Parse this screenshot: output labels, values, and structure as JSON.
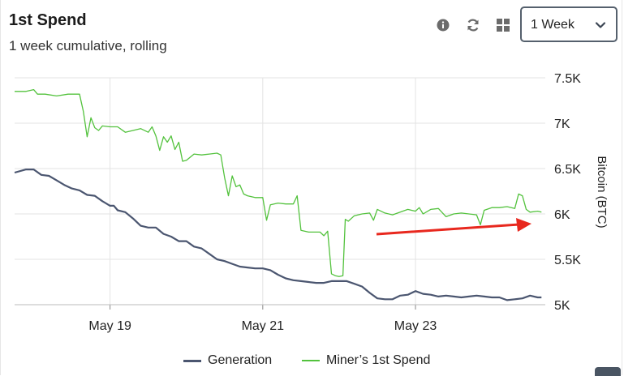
{
  "header": {
    "title": "1st Spend",
    "subtitle": "1 week cumulative, rolling"
  },
  "toolbar": {
    "info_icon": "info-icon",
    "refresh_icon": "refresh-icon",
    "grid_icon": "grid-icon",
    "range_select": {
      "value": "1 Week",
      "icon": "chevron-down-icon"
    }
  },
  "colors": {
    "generation": "#4b5670",
    "spend": "#53c23d",
    "arrow": "#e8281e",
    "grid": "#e3e3e3"
  },
  "chart_data": {
    "type": "line",
    "xlabel": "",
    "ylabel": "Bitcoin (BTC)",
    "x_ticks": [
      {
        "label": "May 19",
        "x": 19.0
      },
      {
        "label": "May 21",
        "x": 21.0
      },
      {
        "label": "May 23",
        "x": 23.0
      }
    ],
    "y_ticks": [
      {
        "label": "7.5K",
        "value": 7500
      },
      {
        "label": "7K",
        "value": 7000
      },
      {
        "label": "6.5K",
        "value": 6500
      },
      {
        "label": "6K",
        "value": 6000
      },
      {
        "label": "5.5K",
        "value": 5500
      },
      {
        "label": "5K",
        "value": 5000
      }
    ],
    "xlim": [
      17.75,
      24.7
    ],
    "ylim": [
      5000,
      7500
    ],
    "grid": true,
    "legend_position": "bottom",
    "series": [
      {
        "name": "Generation",
        "points": [
          [
            17.75,
            6455
          ],
          [
            17.9,
            6490
          ],
          [
            18.0,
            6490
          ],
          [
            18.1,
            6430
          ],
          [
            18.2,
            6420
          ],
          [
            18.3,
            6370
          ],
          [
            18.4,
            6320
          ],
          [
            18.5,
            6280
          ],
          [
            18.6,
            6260
          ],
          [
            18.7,
            6210
          ],
          [
            18.8,
            6200
          ],
          [
            18.9,
            6140
          ],
          [
            19.0,
            6090
          ],
          [
            19.05,
            6090
          ],
          [
            19.1,
            6040
          ],
          [
            19.2,
            6020
          ],
          [
            19.3,
            5950
          ],
          [
            19.4,
            5870
          ],
          [
            19.5,
            5850
          ],
          [
            19.6,
            5850
          ],
          [
            19.7,
            5780
          ],
          [
            19.8,
            5750
          ],
          [
            19.9,
            5700
          ],
          [
            20.0,
            5700
          ],
          [
            20.1,
            5640
          ],
          [
            20.2,
            5620
          ],
          [
            20.3,
            5560
          ],
          [
            20.4,
            5500
          ],
          [
            20.5,
            5480
          ],
          [
            20.6,
            5450
          ],
          [
            20.7,
            5420
          ],
          [
            20.8,
            5410
          ],
          [
            20.9,
            5400
          ],
          [
            21.0,
            5400
          ],
          [
            21.1,
            5380
          ],
          [
            21.2,
            5330
          ],
          [
            21.3,
            5290
          ],
          [
            21.4,
            5270
          ],
          [
            21.5,
            5260
          ],
          [
            21.6,
            5250
          ],
          [
            21.7,
            5240
          ],
          [
            21.8,
            5240
          ],
          [
            21.9,
            5260
          ],
          [
            22.0,
            5260
          ],
          [
            22.1,
            5260
          ],
          [
            22.2,
            5230
          ],
          [
            22.3,
            5200
          ],
          [
            22.4,
            5130
          ],
          [
            22.5,
            5070
          ],
          [
            22.6,
            5060
          ],
          [
            22.7,
            5060
          ],
          [
            22.8,
            5100
          ],
          [
            22.9,
            5110
          ],
          [
            23.0,
            5150
          ],
          [
            23.1,
            5120
          ],
          [
            23.2,
            5110
          ],
          [
            23.3,
            5090
          ],
          [
            23.4,
            5100
          ],
          [
            23.5,
            5090
          ],
          [
            23.6,
            5080
          ],
          [
            23.7,
            5090
          ],
          [
            23.8,
            5100
          ],
          [
            23.9,
            5090
          ],
          [
            24.0,
            5080
          ],
          [
            24.1,
            5080
          ],
          [
            24.2,
            5050
          ],
          [
            24.3,
            5060
          ],
          [
            24.4,
            5070
          ],
          [
            24.5,
            5100
          ],
          [
            24.6,
            5080
          ],
          [
            24.65,
            5080
          ]
        ]
      },
      {
        "name": "Miner’s 1st Spend",
        "points": [
          [
            17.75,
            7350
          ],
          [
            17.9,
            7350
          ],
          [
            18.0,
            7370
          ],
          [
            18.05,
            7320
          ],
          [
            18.15,
            7320
          ],
          [
            18.3,
            7300
          ],
          [
            18.45,
            7320
          ],
          [
            18.6,
            7320
          ],
          [
            18.65,
            7130
          ],
          [
            18.7,
            6850
          ],
          [
            18.75,
            7060
          ],
          [
            18.8,
            6950
          ],
          [
            18.85,
            6920
          ],
          [
            18.9,
            6970
          ],
          [
            19.0,
            6960
          ],
          [
            19.1,
            6960
          ],
          [
            19.2,
            6900
          ],
          [
            19.3,
            6920
          ],
          [
            19.4,
            6940
          ],
          [
            19.5,
            6900
          ],
          [
            19.55,
            6960
          ],
          [
            19.6,
            6860
          ],
          [
            19.65,
            6700
          ],
          [
            19.7,
            6850
          ],
          [
            19.75,
            6790
          ],
          [
            19.8,
            6860
          ],
          [
            19.85,
            6710
          ],
          [
            19.9,
            6790
          ],
          [
            19.95,
            6580
          ],
          [
            20.0,
            6590
          ],
          [
            20.1,
            6660
          ],
          [
            20.2,
            6650
          ],
          [
            20.3,
            6660
          ],
          [
            20.4,
            6670
          ],
          [
            20.45,
            6650
          ],
          [
            20.5,
            6400
          ],
          [
            20.55,
            6200
          ],
          [
            20.6,
            6420
          ],
          [
            20.65,
            6300
          ],
          [
            20.7,
            6320
          ],
          [
            20.75,
            6220
          ],
          [
            20.8,
            6200
          ],
          [
            20.9,
            6180
          ],
          [
            21.0,
            6180
          ],
          [
            21.05,
            5930
          ],
          [
            21.1,
            6100
          ],
          [
            21.2,
            6120
          ],
          [
            21.3,
            6110
          ],
          [
            21.4,
            6110
          ],
          [
            21.45,
            6200
          ],
          [
            21.5,
            5820
          ],
          [
            21.6,
            5800
          ],
          [
            21.7,
            5800
          ],
          [
            21.75,
            5800
          ],
          [
            21.8,
            5760
          ],
          [
            21.85,
            5810
          ],
          [
            21.9,
            5340
          ],
          [
            21.95,
            5320
          ],
          [
            22.0,
            5310
          ],
          [
            22.05,
            5320
          ],
          [
            22.08,
            5940
          ],
          [
            22.12,
            5920
          ],
          [
            22.2,
            5980
          ],
          [
            22.3,
            6000
          ],
          [
            22.4,
            6010
          ],
          [
            22.45,
            5930
          ],
          [
            22.5,
            6050
          ],
          [
            22.6,
            6010
          ],
          [
            22.7,
            5990
          ],
          [
            22.8,
            6020
          ],
          [
            22.9,
            6050
          ],
          [
            23.0,
            6030
          ],
          [
            23.05,
            6070
          ],
          [
            23.1,
            6000
          ],
          [
            23.2,
            6050
          ],
          [
            23.3,
            6060
          ],
          [
            23.4,
            5970
          ],
          [
            23.5,
            6000
          ],
          [
            23.6,
            6010
          ],
          [
            23.7,
            6000
          ],
          [
            23.8,
            5990
          ],
          [
            23.85,
            5880
          ],
          [
            23.9,
            6040
          ],
          [
            24.0,
            6070
          ],
          [
            24.1,
            6070
          ],
          [
            24.2,
            6080
          ],
          [
            24.3,
            6060
          ],
          [
            24.35,
            6220
          ],
          [
            24.4,
            6200
          ],
          [
            24.45,
            6050
          ],
          [
            24.5,
            6020
          ],
          [
            24.6,
            6030
          ],
          [
            24.65,
            6020
          ]
        ]
      }
    ]
  }
}
